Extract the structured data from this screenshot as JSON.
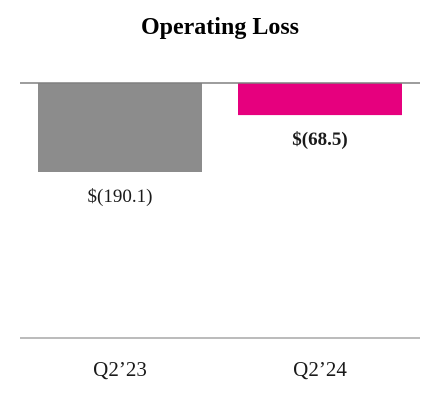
{
  "chart_data": {
    "type": "bar",
    "title": "Operating Loss",
    "xlabel": "",
    "ylabel": "",
    "categories": [
      "Q2’23",
      "Q2’24"
    ],
    "values": [
      -190.1,
      -68.5
    ],
    "value_labels": [
      "$(190.1)",
      "$(68.5)"
    ],
    "value_label_bold": [
      false,
      true
    ],
    "colors": [
      "#8c8c8c",
      "#e6007e"
    ],
    "ylim": [
      -560,
      0
    ],
    "grid": false,
    "legend": "none"
  },
  "colors": {
    "axis_line": "#7f7f7f",
    "bottom_line": "#a6a6a6"
  }
}
